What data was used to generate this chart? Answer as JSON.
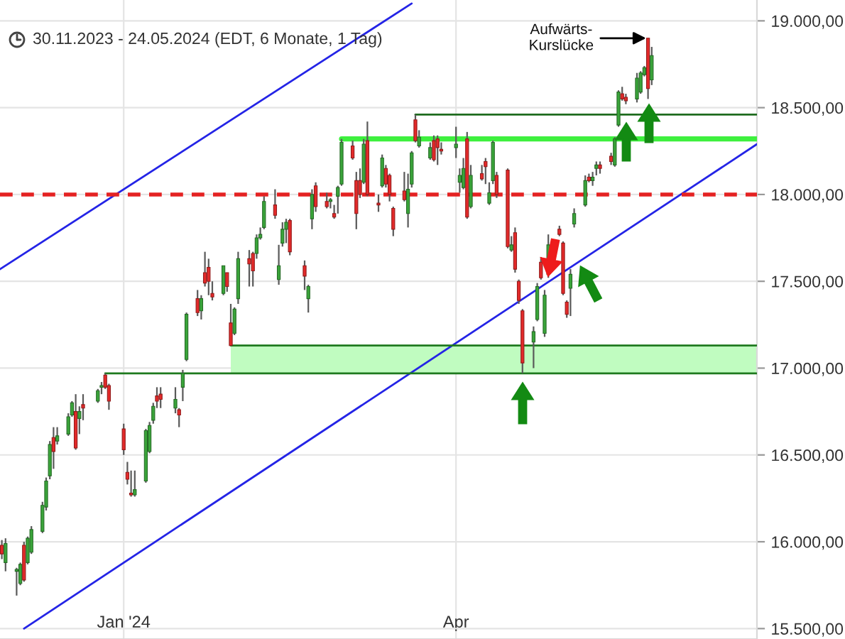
{
  "chart_data": {
    "type": "candlestick",
    "subtitle": "30.11.2023 - 24.05.2024 (EDT, 6 Monate, 1 Tag)",
    "x": [
      "2023-11-30",
      "2023-12-01",
      "2023-12-04",
      "2023-12-05",
      "2023-12-06",
      "2023-12-07",
      "2023-12-08",
      "2023-12-11",
      "2023-12-12",
      "2023-12-13",
      "2023-12-14",
      "2023-12-15",
      "2023-12-18",
      "2023-12-19",
      "2023-12-20",
      "2023-12-21",
      "2023-12-22",
      "2023-12-26",
      "2023-12-27",
      "2023-12-28",
      "2023-12-29",
      "2024-01-02",
      "2024-01-03",
      "2024-01-04",
      "2024-01-05",
      "2024-01-08",
      "2024-01-09",
      "2024-01-10",
      "2024-01-11",
      "2024-01-12",
      "2024-01-16",
      "2024-01-17",
      "2024-01-18",
      "2024-01-19",
      "2024-01-22",
      "2024-01-23",
      "2024-01-24",
      "2024-01-25",
      "2024-01-26",
      "2024-01-29",
      "2024-01-30",
      "2024-01-31",
      "2024-02-01",
      "2024-02-02",
      "2024-02-05",
      "2024-02-06",
      "2024-02-07",
      "2024-02-08",
      "2024-02-09",
      "2024-02-12",
      "2024-02-13",
      "2024-02-14",
      "2024-02-15",
      "2024-02-16",
      "2024-02-20",
      "2024-02-21",
      "2024-02-22",
      "2024-02-23",
      "2024-02-26",
      "2024-02-27",
      "2024-02-28",
      "2024-02-29",
      "2024-03-01",
      "2024-03-04",
      "2024-03-05",
      "2024-03-06",
      "2024-03-07",
      "2024-03-08",
      "2024-03-11",
      "2024-03-12",
      "2024-03-13",
      "2024-03-14",
      "2024-03-15",
      "2024-03-18",
      "2024-03-19",
      "2024-03-20",
      "2024-03-21",
      "2024-03-22",
      "2024-03-25",
      "2024-03-26",
      "2024-03-27",
      "2024-03-28",
      "2024-04-01",
      "2024-04-02",
      "2024-04-03",
      "2024-04-04",
      "2024-04-05",
      "2024-04-08",
      "2024-04-09",
      "2024-04-10",
      "2024-04-11",
      "2024-04-12",
      "2024-04-15",
      "2024-04-16",
      "2024-04-17",
      "2024-04-18",
      "2024-04-19",
      "2024-04-22",
      "2024-04-23",
      "2024-04-24",
      "2024-04-25",
      "2024-04-26",
      "2024-04-29",
      "2024-04-30",
      "2024-05-01",
      "2024-05-02",
      "2024-05-03",
      "2024-05-06",
      "2024-05-07",
      "2024-05-08",
      "2024-05-09",
      "2024-05-10",
      "2024-05-13",
      "2024-05-14",
      "2024-05-15",
      "2024-05-16",
      "2024-05-17",
      "2024-05-20",
      "2024-05-21",
      "2024-05-22",
      "2024-05-23",
      "2024-05-24"
    ],
    "ohlc": [
      [
        15980,
        16010,
        15900,
        15930
      ],
      [
        15880,
        16020,
        15830,
        15990
      ],
      [
        15830,
        15850,
        15690,
        15840
      ],
      [
        15760,
        15880,
        15750,
        15870
      ],
      [
        15980,
        16000,
        15770,
        15780
      ],
      [
        15880,
        16030,
        15870,
        16020
      ],
      [
        15940,
        16090,
        15930,
        16070
      ],
      [
        16060,
        16230,
        16050,
        16210
      ],
      [
        16200,
        16370,
        16180,
        16350
      ],
      [
        16380,
        16580,
        16360,
        16560
      ],
      [
        16600,
        16660,
        16420,
        16520
      ],
      [
        16580,
        16660,
        16560,
        16610
      ],
      [
        16620,
        16740,
        16610,
        16720
      ],
      [
        16730,
        16810,
        16720,
        16800
      ],
      [
        16750,
        16850,
        16530,
        16540
      ],
      [
        16710,
        16780,
        16620,
        16750
      ],
      [
        16790,
        16850,
        16700,
        16770
      ],
      [
        16810,
        16880,
        16800,
        16870
      ],
      [
        16890,
        16920,
        16850,
        16900
      ],
      [
        16960,
        16970,
        16880,
        16890
      ],
      [
        16900,
        16910,
        16760,
        16810
      ],
      [
        16650,
        16680,
        16500,
        16530
      ],
      [
        16400,
        16460,
        16330,
        16360
      ],
      [
        16280,
        16410,
        16260,
        16270
      ],
      [
        16270,
        16410,
        16260,
        16300
      ],
      [
        16350,
        16650,
        16340,
        16640
      ],
      [
        16520,
        16690,
        16510,
        16670
      ],
      [
        16700,
        16800,
        16680,
        16780
      ],
      [
        16840,
        16890,
        16770,
        16810
      ],
      [
        16850,
        16890,
        16770,
        16820
      ],
      [
        16770,
        16890,
        16740,
        16820
      ],
      [
        16760,
        16770,
        16660,
        16730
      ],
      [
        16890,
        16990,
        16810,
        16970
      ],
      [
        17050,
        17320,
        17040,
        17310
      ],
      [
        17400,
        17450,
        17300,
        17320
      ],
      [
        17330,
        17420,
        17280,
        17400
      ],
      [
        17550,
        17670,
        17470,
        17490
      ],
      [
        17580,
        17630,
        17420,
        17500
      ],
      [
        17430,
        17500,
        17390,
        17410
      ],
      [
        17430,
        17590,
        17420,
        17590
      ],
      [
        17550,
        17550,
        17440,
        17470
      ],
      [
        17260,
        17370,
        17130,
        17130
      ],
      [
        17200,
        17350,
        17190,
        17340
      ],
      [
        17400,
        17670,
        17370,
        17630
      ],
      [
        17630,
        17680,
        17470,
        17600
      ],
      [
        17660,
        17670,
        17470,
        17560
      ],
      [
        17660,
        17770,
        17630,
        17750
      ],
      [
        17750,
        17810,
        17740,
        17770
      ],
      [
        17810,
        17990,
        17800,
        17960
      ],
      [
        17940,
        18030,
        17860,
        17880
      ],
      [
        17510,
        17710,
        17480,
        17590
      ],
      [
        17720,
        17840,
        17700,
        17800
      ],
      [
        17800,
        17860,
        17720,
        17840
      ],
      [
        17850,
        17860,
        17650,
        17670
      ],
      [
        17590,
        17620,
        17450,
        17530
      ],
      [
        17400,
        17480,
        17320,
        17470
      ],
      [
        17860,
        18030,
        17800,
        18000
      ],
      [
        18050,
        18070,
        17900,
        17930
      ],
      [
        17960,
        18010,
        17920,
        17930
      ],
      [
        17960,
        17980,
        17920,
        17970
      ],
      [
        17890,
        17940,
        17860,
        17870
      ],
      [
        17990,
        18050,
        17890,
        18040
      ],
      [
        18060,
        18320,
        18050,
        18300
      ],
      [
        18280,
        18310,
        18200,
        18210
      ],
      [
        18080,
        18130,
        17800,
        17890
      ],
      [
        18080,
        18150,
        17980,
        18000
      ],
      [
        18070,
        18320,
        18060,
        18290
      ],
      [
        18310,
        18420,
        17990,
        18000
      ],
      [
        17950,
        18000,
        17900,
        17940
      ],
      [
        18050,
        18230,
        18040,
        18210
      ],
      [
        18150,
        18170,
        18040,
        18060
      ],
      [
        18110,
        18120,
        17960,
        18000
      ],
      [
        17920,
        17930,
        17760,
        17800
      ],
      [
        18020,
        18130,
        17960,
        17970
      ],
      [
        17890,
        18120,
        17810,
        18030
      ],
      [
        18060,
        18250,
        18040,
        18240
      ],
      [
        18430,
        18460,
        18300,
        18310
      ],
      [
        18280,
        18370,
        18270,
        18330
      ],
      [
        18210,
        18300,
        18200,
        18270
      ],
      [
        18310,
        18340,
        18190,
        18200
      ],
      [
        18320,
        18340,
        18170,
        18270
      ],
      [
        18260,
        18300,
        18230,
        18250
      ],
      [
        18270,
        18390,
        18210,
        18290
      ],
      [
        18070,
        18150,
        18010,
        18110
      ],
      [
        18040,
        18210,
        18030,
        18150
      ],
      [
        18320,
        18360,
        17860,
        17870
      ],
      [
        17930,
        18170,
        17920,
        18110
      ],
      [
        18120,
        18170,
        18080,
        18090
      ],
      [
        18190,
        18210,
        18060,
        18160
      ],
      [
        17950,
        18070,
        17940,
        18010
      ],
      [
        18080,
        18310,
        18060,
        18300
      ],
      [
        18110,
        18130,
        17980,
        18000
      ],
      [
        18140,
        18150,
        17690,
        17700
      ],
      [
        17680,
        17760,
        17670,
        17710
      ],
      [
        17780,
        17810,
        17550,
        17570
      ],
      [
        17500,
        17510,
        17370,
        17390
      ],
      [
        17330,
        17340,
        16970,
        17030
      ],
      [
        17150,
        17240,
        17000,
        17210
      ],
      [
        17280,
        17490,
        17270,
        17470
      ],
      [
        17610,
        17640,
        17510,
        17520
      ],
      [
        17200,
        17450,
        17180,
        17420
      ],
      [
        17540,
        17770,
        17520,
        17710
      ],
      [
        17800,
        17820,
        17760,
        17770
      ],
      [
        17720,
        17730,
        17420,
        17430
      ],
      [
        17380,
        17390,
        17290,
        17310
      ],
      [
        17460,
        17570,
        17300,
        17540
      ],
      [
        17830,
        17920,
        17810,
        17890
      ],
      [
        17940,
        18110,
        17930,
        18080
      ],
      [
        18100,
        18120,
        18070,
        18080
      ],
      [
        18080,
        18130,
        18050,
        18100
      ],
      [
        18150,
        18190,
        18110,
        18170
      ],
      [
        18170,
        18190,
        18120,
        18150
      ],
      [
        18220,
        18240,
        18170,
        18190
      ],
      [
        18170,
        18330,
        18160,
        18320
      ],
      [
        18400,
        18600,
        18390,
        18590
      ],
      [
        18580,
        18620,
        18540,
        18550
      ],
      [
        18560,
        18580,
        18520,
        18540
      ],
      [
        18550,
        18700,
        18530,
        18670
      ],
      [
        18590,
        18710,
        18580,
        18700
      ],
      [
        18690,
        18740,
        18680,
        18730
      ],
      [
        18900,
        18900,
        18550,
        18610
      ],
      [
        18660,
        18850,
        18630,
        18800
      ]
    ],
    "colors": [
      "#e42a2a",
      "#3aa53a",
      "#3aa53a",
      "#3aa53a",
      "#e42a2a",
      "#3aa53a",
      "#3aa53a",
      "#3aa53a",
      "#3aa53a",
      "#3aa53a",
      "#e42a2a",
      "#3aa53a",
      "#3aa53a",
      "#3aa53a",
      "#e42a2a",
      "#3aa53a",
      "#e42a2a",
      "#3aa53a",
      "#3aa53a",
      "#e42a2a",
      "#e42a2a",
      "#e42a2a",
      "#e42a2a",
      "#e42a2a",
      "#3aa53a",
      "#3aa53a",
      "#3aa53a",
      "#3aa53a",
      "#e42a2a",
      "#e42a2a",
      "#3aa53a",
      "#e42a2a",
      "#3aa53a",
      "#3aa53a",
      "#e42a2a",
      "#3aa53a",
      "#e42a2a",
      "#e42a2a",
      "#e42a2a",
      "#3aa53a",
      "#e42a2a",
      "#e42a2a",
      "#3aa53a",
      "#3aa53a",
      "#e42a2a",
      "#e42a2a",
      "#3aa53a",
      "#3aa53a",
      "#3aa53a",
      "#e42a2a",
      "#3aa53a",
      "#3aa53a",
      "#3aa53a",
      "#e42a2a",
      "#e42a2a",
      "#3aa53a",
      "#3aa53a",
      "#e42a2a",
      "#e42a2a",
      "#3aa53a",
      "#e42a2a",
      "#3aa53a",
      "#3aa53a",
      "#e42a2a",
      "#e42a2a",
      "#e42a2a",
      "#3aa53a",
      "#e42a2a",
      "#e42a2a",
      "#3aa53a",
      "#e42a2a",
      "#e42a2a",
      "#e42a2a",
      "#e42a2a",
      "#3aa53a",
      "#3aa53a",
      "#e42a2a",
      "#3aa53a",
      "#3aa53a",
      "#e42a2a",
      "#e42a2a",
      "#e42a2a",
      "#3aa53a",
      "#3aa53a",
      "#3aa53a",
      "#e42a2a",
      "#3aa53a",
      "#e42a2a",
      "#e42a2a",
      "#3aa53a",
      "#3aa53a",
      "#e42a2a",
      "#e42a2a",
      "#3aa53a",
      "#e42a2a",
      "#e42a2a",
      "#e42a2a",
      "#3aa53a",
      "#3aa53a",
      "#e42a2a",
      "#3aa53a",
      "#3aa53a",
      "#e42a2a",
      "#e42a2a",
      "#e42a2a",
      "#3aa53a",
      "#3aa53a",
      "#3aa53a",
      "#e42a2a",
      "#3aa53a",
      "#3aa53a",
      "#e42a2a",
      "#e42a2a",
      "#3aa53a",
      "#3aa53a",
      "#e42a2a",
      "#e42a2a",
      "#3aa53a",
      "#3aa53a",
      "#3aa53a",
      "#e42a2a",
      "#3aa53a"
    ],
    "series": [
      {
        "type": "line",
        "x": [
          "2023-11-29T12:00",
          "2024-03-20"
        ],
        "values": [
          17570,
          19100
        ],
        "color": "#2424e6"
      },
      {
        "type": "line",
        "x": [
          "2023-12-06",
          "2024-06-21T12:00"
        ],
        "values": [
          15500,
          18290
        ],
        "color": "#2424e6"
      },
      {
        "type": "line",
        "x": [
          "2024-01-31",
          "2024-06-21T12:00"
        ],
        "values": [
          17130,
          17130
        ],
        "lower": [
          16970,
          16970
        ],
        "upper": [
          17130,
          17130
        ],
        "color": "#1e7a1e"
      },
      {
        "type": "line",
        "x": [
          "2023-12-28",
          "2024-06-21T12:00"
        ],
        "values": [
          16970,
          16970
        ],
        "color": "#1e7a1e"
      },
      {
        "type": "line",
        "x": [
          "2024-03-01",
          "2024-06-21T12:00"
        ],
        "values": [
          18320,
          18320
        ],
        "color": "#3ef03e"
      },
      {
        "type": "line",
        "x": [
          "2024-03-21",
          "2024-06-21T12:00"
        ],
        "values": [
          18460,
          18460
        ],
        "color": "#1e6b1e"
      }
    ],
    "ref_lines": [
      {
        "axis": "y",
        "value": 18000,
        "color": "#e42222",
        "line_style": "dashed"
      }
    ],
    "annotations": [
      {
        "text": "Aufwärts-\nKurslücke",
        "x": "2024-05-23",
        "y": 18900
      }
    ],
    "xlim": [
      "2023-11-29T12:00",
      "2024-06-21T12:00"
    ],
    "xticks": [
      {
        "value": "2024-01-02",
        "label": "Jan '24"
      },
      {
        "value": "2024-04-01",
        "label": "Apr"
      }
    ],
    "ylim": [
      15440,
      19120
    ],
    "yticks": [
      {
        "value": 15500,
        "label": "15.500,00"
      },
      {
        "value": 16000,
        "label": "16.000,00"
      },
      {
        "value": 16500,
        "label": "16.500,00"
      },
      {
        "value": 17000,
        "label": "17.000,00"
      },
      {
        "value": 17500,
        "label": "17.500,00"
      },
      {
        "value": 18000,
        "label": "18.000,00"
      },
      {
        "value": 18500,
        "label": "18.500,00"
      },
      {
        "value": 19000,
        "label": "19.000,00"
      }
    ],
    "grid": true
  }
}
